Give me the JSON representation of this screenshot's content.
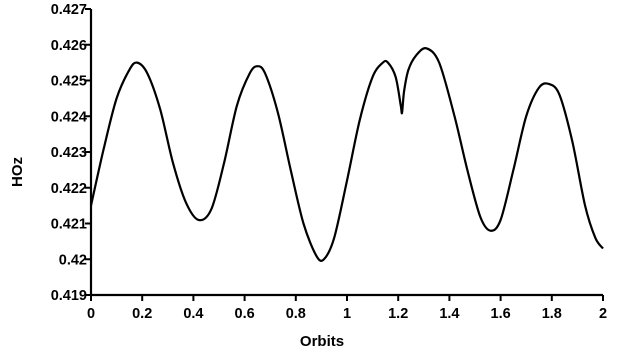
{
  "chart_data": {
    "type": "line",
    "title": "",
    "xlabel": "Orbits",
    "ylabel": "HOz",
    "xlim": [
      0,
      2
    ],
    "ylim": [
      0.419,
      0.427
    ],
    "grid": false,
    "x_ticks": [
      0,
      0.2,
      0.4,
      0.6,
      0.8,
      1,
      1.2,
      1.4,
      1.6,
      1.8,
      2
    ],
    "x_tick_labels": [
      "0",
      "0.2",
      "0.4",
      "0.6",
      "0.8",
      "1",
      "1.2",
      "1.4",
      "1.6",
      "1.8",
      "2"
    ],
    "y_ticks": [
      0.419,
      0.42,
      0.421,
      0.422,
      0.423,
      0.424,
      0.425,
      0.426,
      0.427
    ],
    "y_tick_labels": [
      "0.419",
      "0.42",
      "0.421",
      "0.422",
      "0.423",
      "0.424",
      "0.425",
      "0.426",
      "0.427"
    ],
    "line_color": "#000000",
    "series": [
      {
        "x": [
          0.0,
          0.05,
          0.1,
          0.15,
          0.18,
          0.22,
          0.27,
          0.32,
          0.37,
          0.42,
          0.47,
          0.52,
          0.57,
          0.62,
          0.65,
          0.68,
          0.73,
          0.78,
          0.83,
          0.88,
          0.91,
          0.95,
          1.0,
          1.05,
          1.1,
          1.14,
          1.16,
          1.19,
          1.21,
          1.215,
          1.223,
          1.24,
          1.27,
          1.31,
          1.36,
          1.42,
          1.47,
          1.52,
          1.56,
          1.6,
          1.65,
          1.7,
          1.75,
          1.79,
          1.83,
          1.88,
          1.93,
          1.97,
          2.0
        ],
        "y": [
          0.4215,
          0.4231,
          0.4245,
          0.4253,
          0.4255,
          0.4252,
          0.4242,
          0.4227,
          0.4216,
          0.4211,
          0.4214,
          0.4227,
          0.4243,
          0.4252,
          0.4254,
          0.4252,
          0.4241,
          0.4225,
          0.421,
          0.4201,
          0.42,
          0.4206,
          0.4222,
          0.4239,
          0.4251,
          0.4255,
          0.4255,
          0.4251,
          0.4243,
          0.4241,
          0.4247,
          0.4253,
          0.4257,
          0.4259,
          0.4255,
          0.424,
          0.4225,
          0.4212,
          0.4208,
          0.4211,
          0.4225,
          0.424,
          0.4248,
          0.4249,
          0.4246,
          0.4233,
          0.4215,
          0.4206,
          0.4203
        ]
      }
    ]
  }
}
